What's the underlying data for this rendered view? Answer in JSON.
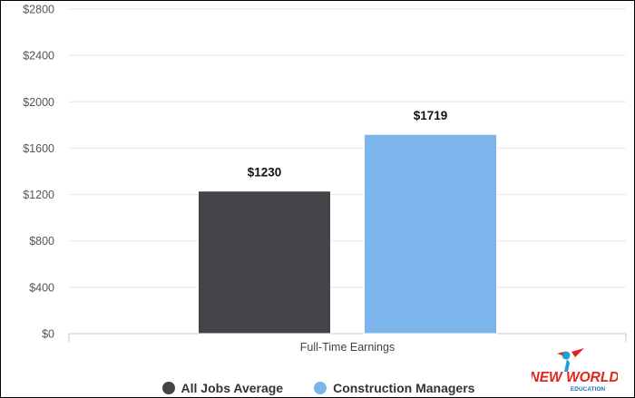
{
  "chart_data": {
    "type": "bar",
    "title": "",
    "xlabel": "",
    "ylabel": "",
    "categories": [
      "Full-Time Earnings"
    ],
    "series": [
      {
        "name": "All Jobs Average",
        "values": [
          1230
        ],
        "label": "$1230",
        "color": "#434348"
      },
      {
        "name": "Construction Managers",
        "values": [
          1719
        ],
        "label": "$1719",
        "color": "#7cb5ec"
      }
    ],
    "ylim": [
      0,
      2800
    ],
    "y_ticks": [
      0,
      400,
      800,
      1200,
      1600,
      2000,
      2400,
      2800
    ],
    "y_tick_labels": [
      "$0",
      "$400",
      "$800",
      "$1200",
      "$1600",
      "$2000",
      "$2400",
      "$2800"
    ],
    "grid": true,
    "legend_position": "bottom-center"
  },
  "logo": {
    "text_line1": "NEW WORLD",
    "text_line2": "EDUCATION"
  }
}
